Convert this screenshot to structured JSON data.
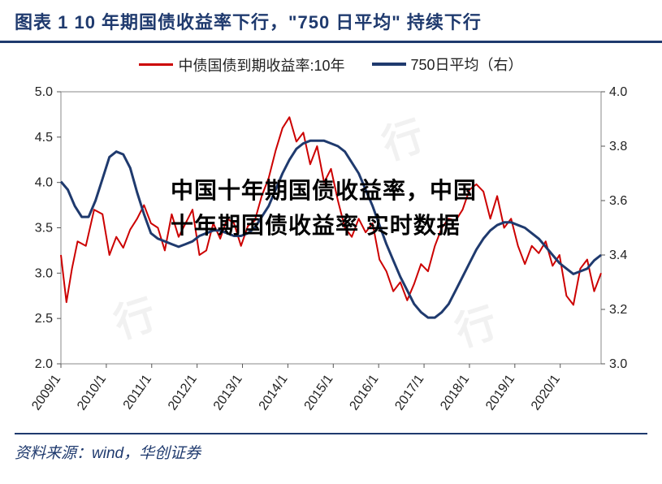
{
  "title": "图表 1    10 年期国债收益率下行，\"750 日平均\" 持续下行",
  "source": "资料来源：wind，华创证券",
  "overlay_text": "中国十年期国债收益率，中国十年期国债收益率 实时数据",
  "chart": {
    "type": "line",
    "background_color": "#ffffff",
    "title_color": "#1f3a6e",
    "border_color": "#1f3a6e",
    "axis_text_color": "#222222",
    "title_fontsize": 22,
    "axis_fontsize": 16,
    "legend_fontsize": 18,
    "overlay_fontsize": 28,
    "left_axis": {
      "min": 2.0,
      "max": 5.0,
      "ticks": [
        2.0,
        2.5,
        3.0,
        3.5,
        4.0,
        4.5,
        5.0
      ]
    },
    "right_axis": {
      "min": 3.0,
      "max": 4.0,
      "ticks": [
        3.0,
        3.2,
        3.4,
        3.6,
        3.8,
        4.0
      ]
    },
    "x_labels": [
      "2009/1",
      "2010/1",
      "2011/1",
      "2012/1",
      "2013/1",
      "2014/1",
      "2015/1",
      "2016/1",
      "2017/1",
      "2018/1",
      "2019/1",
      "2020/1"
    ],
    "series": [
      {
        "name": "中债国债到期收益率:10年",
        "axis": "left",
        "color": "#cc0000",
        "line_width": 2,
        "data": [
          [
            0,
            3.2
          ],
          [
            0.04,
            2.68
          ],
          [
            0.08,
            3.05
          ],
          [
            0.12,
            3.35
          ],
          [
            0.18,
            3.3
          ],
          [
            0.24,
            3.7
          ],
          [
            0.3,
            3.65
          ],
          [
            0.35,
            3.2
          ],
          [
            0.4,
            3.4
          ],
          [
            0.45,
            3.28
          ],
          [
            0.5,
            3.48
          ],
          [
            0.55,
            3.6
          ],
          [
            0.6,
            3.75
          ],
          [
            0.65,
            3.55
          ],
          [
            0.7,
            3.5
          ],
          [
            0.75,
            3.25
          ],
          [
            0.8,
            3.65
          ],
          [
            0.85,
            3.4
          ],
          [
            0.9,
            3.55
          ],
          [
            0.95,
            3.7
          ],
          [
            1.0,
            3.2
          ],
          [
            1.05,
            3.25
          ],
          [
            1.1,
            3.55
          ],
          [
            1.15,
            3.38
          ],
          [
            1.2,
            3.6
          ],
          [
            1.25,
            3.55
          ],
          [
            1.3,
            3.3
          ],
          [
            1.35,
            3.52
          ],
          [
            1.4,
            3.58
          ],
          [
            1.45,
            3.85
          ],
          [
            1.5,
            4.05
          ],
          [
            1.55,
            4.35
          ],
          [
            1.6,
            4.6
          ],
          [
            1.65,
            4.72
          ],
          [
            1.7,
            4.45
          ],
          [
            1.75,
            4.55
          ],
          [
            1.8,
            4.2
          ],
          [
            1.85,
            4.4
          ],
          [
            1.9,
            4.0
          ],
          [
            1.95,
            4.15
          ],
          [
            2.0,
            3.8
          ],
          [
            2.05,
            3.5
          ],
          [
            2.1,
            3.4
          ],
          [
            2.15,
            3.6
          ],
          [
            2.2,
            3.45
          ],
          [
            2.25,
            3.55
          ],
          [
            2.3,
            3.15
          ],
          [
            2.35,
            3.02
          ],
          [
            2.4,
            2.8
          ],
          [
            2.45,
            2.9
          ],
          [
            2.5,
            2.7
          ],
          [
            2.55,
            2.88
          ],
          [
            2.6,
            3.1
          ],
          [
            2.65,
            3.02
          ],
          [
            2.7,
            3.3
          ],
          [
            2.75,
            3.5
          ],
          [
            2.8,
            3.6
          ],
          [
            2.85,
            3.58
          ],
          [
            2.9,
            3.7
          ],
          [
            2.95,
            3.92
          ],
          [
            3.0,
            3.98
          ],
          [
            3.05,
            3.9
          ],
          [
            3.1,
            3.6
          ],
          [
            3.15,
            3.85
          ],
          [
            3.2,
            3.5
          ],
          [
            3.25,
            3.6
          ],
          [
            3.3,
            3.3
          ],
          [
            3.35,
            3.1
          ],
          [
            3.4,
            3.3
          ],
          [
            3.45,
            3.22
          ],
          [
            3.5,
            3.35
          ],
          [
            3.55,
            3.08
          ],
          [
            3.6,
            3.2
          ],
          [
            3.65,
            2.75
          ],
          [
            3.7,
            2.65
          ],
          [
            3.75,
            3.05
          ],
          [
            3.8,
            3.15
          ],
          [
            3.85,
            2.8
          ],
          [
            3.9,
            3.0
          ]
        ]
      },
      {
        "name": "750日平均（右）",
        "axis": "right",
        "color": "#1f3a6e",
        "line_width": 3,
        "data": [
          [
            0,
            3.67
          ],
          [
            0.05,
            3.64
          ],
          [
            0.1,
            3.58
          ],
          [
            0.15,
            3.54
          ],
          [
            0.2,
            3.54
          ],
          [
            0.25,
            3.6
          ],
          [
            0.3,
            3.68
          ],
          [
            0.35,
            3.76
          ],
          [
            0.4,
            3.78
          ],
          [
            0.45,
            3.77
          ],
          [
            0.5,
            3.72
          ],
          [
            0.55,
            3.63
          ],
          [
            0.6,
            3.55
          ],
          [
            0.65,
            3.48
          ],
          [
            0.7,
            3.46
          ],
          [
            0.75,
            3.45
          ],
          [
            0.8,
            3.44
          ],
          [
            0.85,
            3.43
          ],
          [
            0.9,
            3.44
          ],
          [
            0.95,
            3.45
          ],
          [
            1.0,
            3.47
          ],
          [
            1.05,
            3.48
          ],
          [
            1.1,
            3.49
          ],
          [
            1.15,
            3.49
          ],
          [
            1.2,
            3.48
          ],
          [
            1.25,
            3.47
          ],
          [
            1.3,
            3.47
          ],
          [
            1.35,
            3.48
          ],
          [
            1.4,
            3.5
          ],
          [
            1.45,
            3.54
          ],
          [
            1.5,
            3.58
          ],
          [
            1.55,
            3.64
          ],
          [
            1.6,
            3.7
          ],
          [
            1.65,
            3.75
          ],
          [
            1.7,
            3.79
          ],
          [
            1.75,
            3.81
          ],
          [
            1.8,
            3.82
          ],
          [
            1.85,
            3.82
          ],
          [
            1.9,
            3.82
          ],
          [
            1.95,
            3.81
          ],
          [
            2.0,
            3.8
          ],
          [
            2.05,
            3.78
          ],
          [
            2.1,
            3.74
          ],
          [
            2.15,
            3.7
          ],
          [
            2.2,
            3.64
          ],
          [
            2.25,
            3.58
          ],
          [
            2.3,
            3.51
          ],
          [
            2.35,
            3.44
          ],
          [
            2.4,
            3.38
          ],
          [
            2.45,
            3.32
          ],
          [
            2.5,
            3.27
          ],
          [
            2.55,
            3.22
          ],
          [
            2.6,
            3.19
          ],
          [
            2.65,
            3.17
          ],
          [
            2.7,
            3.17
          ],
          [
            2.75,
            3.19
          ],
          [
            2.8,
            3.22
          ],
          [
            2.85,
            3.27
          ],
          [
            2.9,
            3.32
          ],
          [
            2.95,
            3.37
          ],
          [
            3.0,
            3.42
          ],
          [
            3.05,
            3.46
          ],
          [
            3.1,
            3.49
          ],
          [
            3.15,
            3.51
          ],
          [
            3.2,
            3.52
          ],
          [
            3.25,
            3.52
          ],
          [
            3.3,
            3.51
          ],
          [
            3.35,
            3.5
          ],
          [
            3.4,
            3.48
          ],
          [
            3.45,
            3.46
          ],
          [
            3.5,
            3.43
          ],
          [
            3.55,
            3.4
          ],
          [
            3.6,
            3.37
          ],
          [
            3.65,
            3.35
          ],
          [
            3.7,
            3.33
          ],
          [
            3.75,
            3.34
          ],
          [
            3.8,
            3.35
          ],
          [
            3.85,
            3.38
          ],
          [
            3.9,
            3.4
          ]
        ]
      }
    ]
  }
}
